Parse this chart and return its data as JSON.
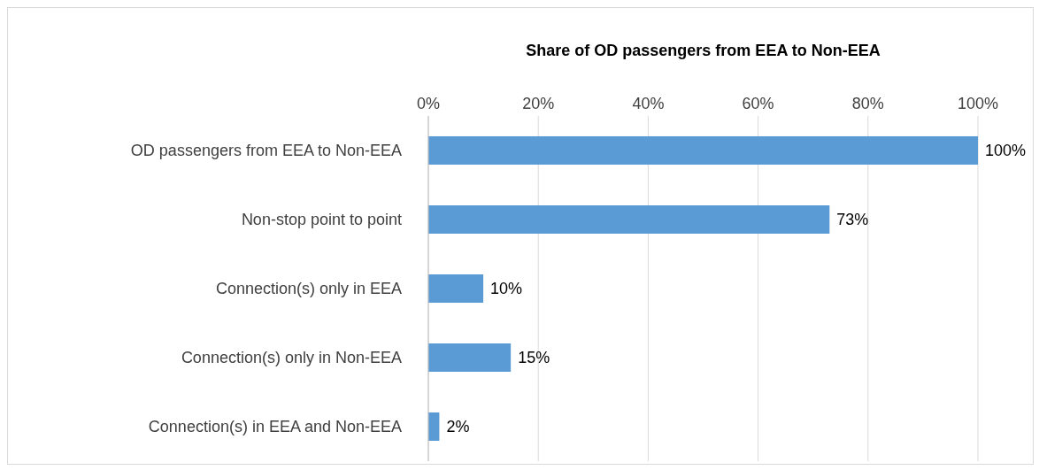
{
  "chart_data": {
    "type": "bar",
    "orientation": "horizontal",
    "xlabel": "Share of OD passengers from EEA to Non-EEA",
    "categories": [
      "OD passengers from EEA to Non-EEA",
      "Non-stop point to point",
      "Connection(s) only in EEA",
      "Connection(s) only in Non-EEA",
      "Connection(s) in EEA and Non-EEA"
    ],
    "values": [
      100,
      73,
      10,
      15,
      2
    ],
    "value_labels": [
      "100%",
      "73%",
      "10%",
      "15%",
      "2%"
    ],
    "color": "#5b9bd5",
    "xlim": [
      0,
      100
    ],
    "xticks": [
      {
        "value": 0,
        "label": "0%"
      },
      {
        "value": 20,
        "label": "20%"
      },
      {
        "value": 40,
        "label": "40%"
      },
      {
        "value": 60,
        "label": "60%"
      },
      {
        "value": 80,
        "label": "80%"
      },
      {
        "value": 100,
        "label": "100%"
      }
    ],
    "grid": "x",
    "legend": false
  }
}
